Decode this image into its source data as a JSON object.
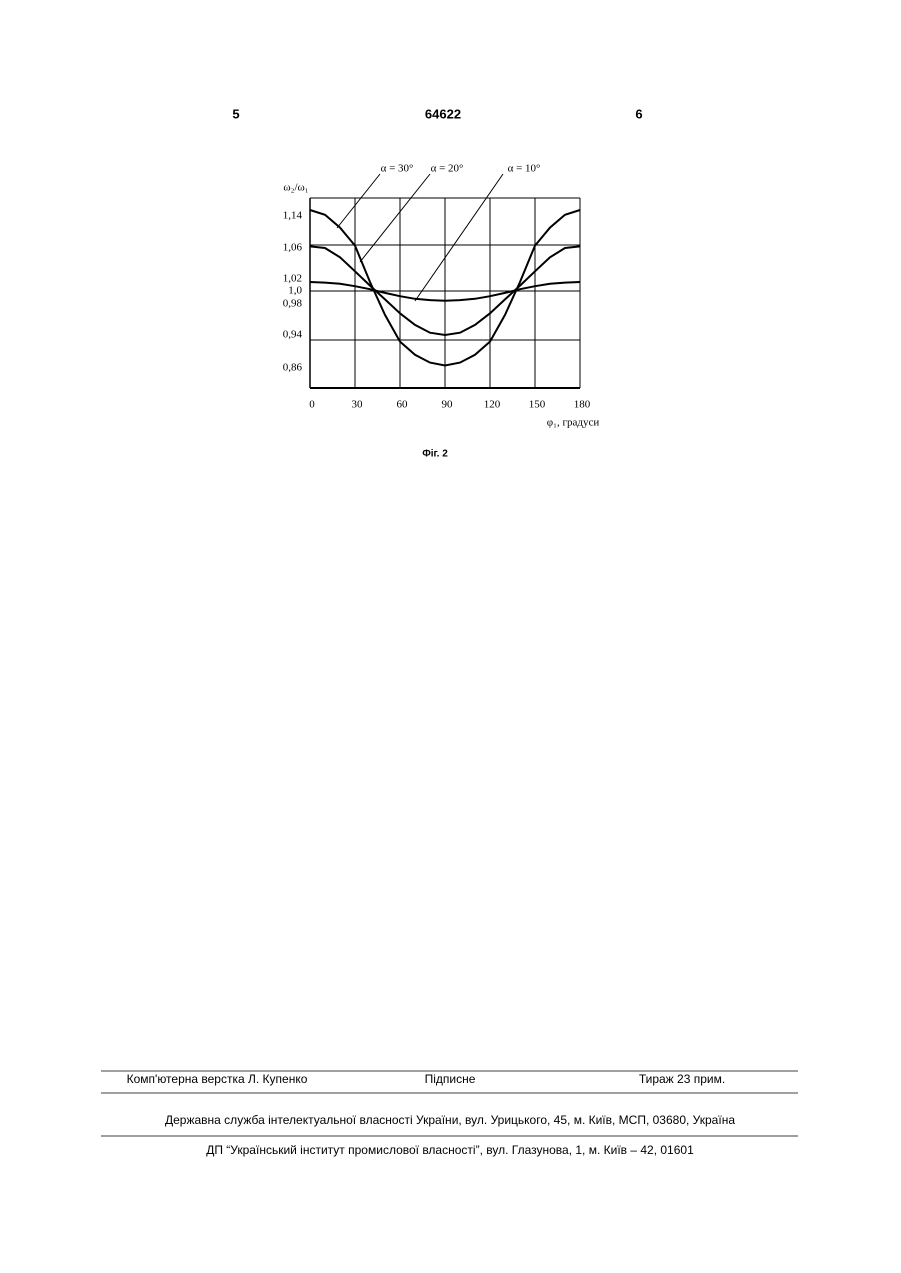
{
  "header": {
    "left": "5",
    "center": "64622",
    "right": "6"
  },
  "figure": {
    "chart_data": {
      "type": "line",
      "ylabel": "ω₂/ω₁",
      "xlabel": "φ₁, градуси",
      "x": [
        0,
        10,
        20,
        30,
        40,
        50,
        60,
        70,
        80,
        90,
        100,
        110,
        120,
        130,
        140,
        150,
        160,
        170,
        180
      ],
      "series": [
        {
          "name": "α = 30°",
          "color": "#000000",
          "values": [
            1.155,
            1.143,
            1.111,
            1.066,
            1.015,
            0.966,
            0.924,
            0.892,
            0.873,
            0.866,
            0.873,
            0.892,
            0.924,
            0.966,
            1.015,
            1.066,
            1.111,
            1.143,
            1.155
          ]
        },
        {
          "name": "α = 20°",
          "color": "#000000",
          "values": [
            1.064,
            1.06,
            1.048,
            1.03,
            1.009,
            0.987,
            0.968,
            0.953,
            0.943,
            0.94,
            0.943,
            0.953,
            0.968,
            0.987,
            1.009,
            1.03,
            1.048,
            1.06,
            1.064
          ]
        },
        {
          "name": "α = 10°",
          "color": "#000000",
          "values": [
            1.015,
            1.014,
            1.012,
            1.008,
            1.003,
            0.997,
            0.992,
            0.988,
            0.986,
            0.985,
            0.986,
            0.988,
            0.992,
            0.997,
            1.003,
            1.008,
            1.012,
            1.014,
            1.015
          ]
        }
      ],
      "xlim": [
        0,
        180
      ],
      "xticks": [
        0,
        30,
        60,
        90,
        120,
        150,
        180
      ],
      "yticks": [
        {
          "value": 1.14,
          "label": "1,14"
        },
        {
          "value": 1.06,
          "label": "1,06"
        },
        {
          "value": 1.02,
          "label": "1,02"
        },
        {
          "value": 1.0,
          "label": "1,0"
        },
        {
          "value": 0.98,
          "label": "0,98"
        },
        {
          "value": 0.94,
          "label": "0,94"
        },
        {
          "value": 0.86,
          "label": "0,86"
        }
      ],
      "grid": true
    },
    "caption": "Фіг. 2"
  },
  "footer": {
    "row1": [
      "Комп'ютерна верстка Л. Купенко",
      "Підписне",
      "Тираж 23 прим."
    ],
    "row2": "Державна служба інтелектуальної власності України, вул. Урицького, 45, м. Київ, МСП, 03680, Україна",
    "row3": "ДП “Український інститут промислової власності”, вул. Глазунова, 1, м. Київ – 42, 01601"
  }
}
